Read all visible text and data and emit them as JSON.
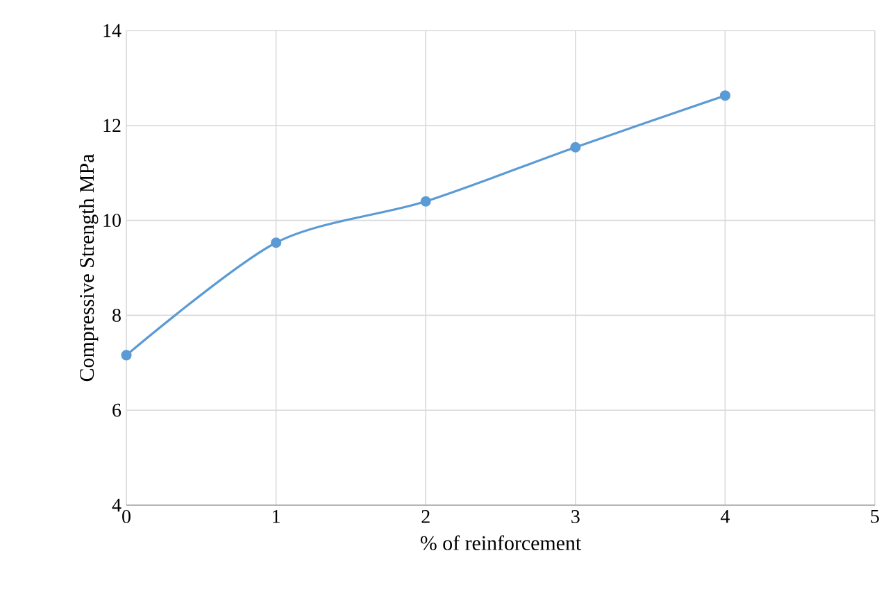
{
  "chart_data": {
    "type": "line",
    "xlabel": "% of reinforcement",
    "ylabel": "Compressive Strength MPa",
    "x": [
      0,
      1,
      2,
      3,
      4
    ],
    "series": [
      {
        "color": "#5b9bd5",
        "values": [
          7.16,
          9.53,
          10.4,
          11.54,
          12.63
        ]
      }
    ],
    "xlim": [
      0,
      5
    ],
    "xticks": [
      0,
      1,
      2,
      3,
      4,
      5
    ],
    "ylim": [
      4,
      14
    ],
    "yticks": [
      4,
      6,
      8,
      10,
      12,
      14
    ],
    "grid": true,
    "marker": "circle",
    "line_style": "solid"
  }
}
